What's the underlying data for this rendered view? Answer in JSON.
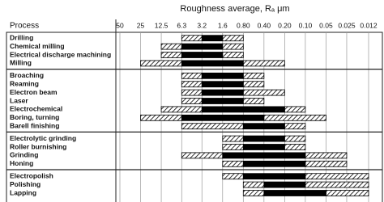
{
  "chart_data": {
    "type": "range",
    "title": "Roughness average, Rₐ μm",
    "category_header": "Process",
    "xlog": true,
    "xlim": [
      50,
      0.012
    ],
    "xticks": [
      50,
      25,
      12.5,
      6.3,
      3.2,
      1.6,
      {
        "value": 0.8,
        "label": "0.80"
      },
      {
        "value": 0.4,
        "label": "0.40"
      },
      {
        "value": 0.2,
        "label": "0.20"
      },
      {
        "value": 0.1,
        "label": "0.10"
      },
      0.05,
      0.025,
      0.012
    ],
    "groups": [
      [
        {
          "process": "Drilling",
          "solid": [
            [
              3.2,
              1.6
            ]
          ],
          "hatched": [
            [
              6.3,
              3.2
            ],
            [
              1.6,
              0.8
            ]
          ]
        },
        {
          "process": "Chemical milling",
          "solid": [
            [
              6.3,
              1.6
            ]
          ],
          "hatched": [
            [
              12.5,
              6.3
            ],
            [
              1.6,
              0.8
            ]
          ]
        },
        {
          "process": "Electrical discharge machining",
          "solid": [
            [
              6.3,
              1.6
            ]
          ],
          "hatched": [
            [
              12.5,
              6.3
            ],
            [
              1.6,
              0.8
            ]
          ]
        },
        {
          "process": "Milling",
          "solid": [
            [
              6.3,
              0.8
            ]
          ],
          "hatched": [
            [
              25,
              6.3
            ],
            [
              0.8,
              0.2
            ]
          ]
        }
      ],
      [
        {
          "process": "Broaching",
          "solid": [
            [
              3.2,
              0.8
            ]
          ],
          "hatched": [
            [
              6.3,
              3.2
            ],
            [
              0.8,
              0.4
            ]
          ]
        },
        {
          "process": "Reaming",
          "solid": [
            [
              3.2,
              0.8
            ]
          ],
          "hatched": [
            [
              6.3,
              3.2
            ],
            [
              0.8,
              0.4
            ]
          ]
        },
        {
          "process": "Electron beam",
          "solid": [
            [
              3.2,
              0.8
            ]
          ],
          "hatched": [
            [
              6.3,
              3.2
            ],
            [
              0.8,
              0.2
            ]
          ]
        },
        {
          "process": "Laser",
          "solid": [
            [
              3.2,
              0.8
            ]
          ],
          "hatched": [
            [
              6.3,
              3.2
            ],
            [
              0.8,
              0.4
            ]
          ]
        },
        {
          "process": "Electrochemical",
          "solid": [
            [
              3.2,
              0.2
            ]
          ],
          "hatched": [
            [
              12.5,
              3.2
            ],
            [
              0.2,
              0.1
            ]
          ]
        },
        {
          "process": "Boring, turning",
          "solid": [
            [
              6.3,
              0.4
            ]
          ],
          "hatched": [
            [
              25,
              6.3
            ],
            [
              0.4,
              0.05
            ]
          ]
        },
        {
          "process": "Barell finishing",
          "solid": [
            [
              0.8,
              0.2
            ]
          ],
          "hatched": [
            [
              6.3,
              0.8
            ],
            [
              0.2,
              0.1
            ]
          ]
        }
      ],
      [
        {
          "process": "Electrolytic grinding",
          "solid": [
            [
              0.8,
              0.2
            ]
          ],
          "hatched": [
            [
              1.6,
              0.8
            ],
            [
              0.2,
              0.1
            ]
          ]
        },
        {
          "process": "Roller burnishing",
          "solid": [
            [
              0.8,
              0.2
            ]
          ],
          "hatched": [
            [
              1.6,
              0.8
            ],
            [
              0.2,
              0.1
            ]
          ]
        },
        {
          "process": "Grinding",
          "solid": [
            [
              1.6,
              0.1
            ]
          ],
          "hatched": [
            [
              6.3,
              1.6
            ],
            [
              0.1,
              0.025
            ]
          ]
        },
        {
          "process": "Honing",
          "solid": [
            [
              0.8,
              0.1
            ]
          ],
          "hatched": [
            [
              1.6,
              0.8
            ],
            [
              0.1,
              0.025
            ]
          ]
        }
      ],
      [
        {
          "process": "Electropolish",
          "solid": [
            [
              0.8,
              0.1
            ]
          ],
          "hatched": [
            [
              1.6,
              0.8
            ],
            [
              0.1,
              0.012
            ]
          ]
        },
        {
          "process": "Polishing",
          "solid": [
            [
              0.4,
              0.1
            ]
          ],
          "hatched": [
            [
              0.8,
              0.4
            ],
            [
              0.1,
              0.012
            ]
          ]
        },
        {
          "process": "Lapping",
          "solid": [
            [
              0.4,
              0.05
            ]
          ],
          "hatched": [
            [
              0.8,
              0.4
            ],
            [
              0.05,
              0.012
            ]
          ]
        }
      ]
    ]
  }
}
